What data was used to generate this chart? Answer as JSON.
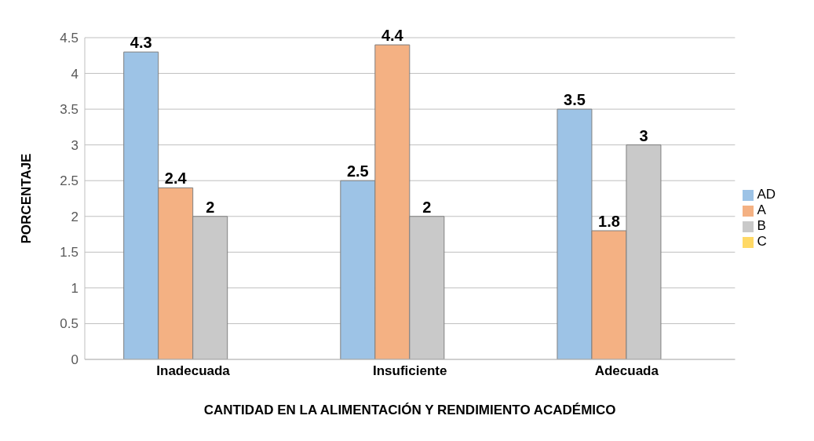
{
  "chart_data": {
    "type": "bar",
    "xlabel": "CANTIDAD EN LA ALIMENTACIÓN Y RENDIMIENTO ACADÉMICO",
    "ylabel": "PORCENTAJE",
    "categories": [
      "Inadecuada",
      "Insuficiente",
      "Adecuada"
    ],
    "series": [
      {
        "name": "AD",
        "color": "#9dc3e6",
        "values": [
          4.3,
          2.5,
          3.5
        ]
      },
      {
        "name": "A",
        "color": "#f4b183",
        "values": [
          2.4,
          4.4,
          1.8
        ]
      },
      {
        "name": "B",
        "color": "#c9c9c9",
        "values": [
          2,
          2,
          3
        ]
      },
      {
        "name": "C",
        "color": "#ffd966",
        "values": [
          null,
          null,
          null
        ]
      }
    ],
    "ylim": [
      0,
      4.5
    ],
    "yticks": [
      0,
      0.5,
      1,
      1.5,
      2,
      2.5,
      3,
      3.5,
      4,
      4.5
    ],
    "grid": "y",
    "legend": "right",
    "data_labels": true
  }
}
